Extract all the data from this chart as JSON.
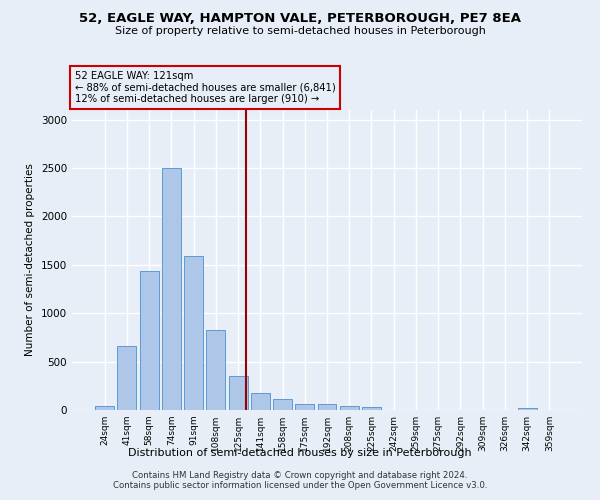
{
  "title": "52, EAGLE WAY, HAMPTON VALE, PETERBOROUGH, PE7 8EA",
  "subtitle": "Size of property relative to semi-detached houses in Peterborough",
  "xlabel": "Distribution of semi-detached houses by size in Peterborough",
  "ylabel": "Number of semi-detached properties",
  "footer_line1": "Contains HM Land Registry data © Crown copyright and database right 2024.",
  "footer_line2": "Contains public sector information licensed under the Open Government Licence v3.0.",
  "categories": [
    "24sqm",
    "41sqm",
    "58sqm",
    "74sqm",
    "91sqm",
    "108sqm",
    "125sqm",
    "141sqm",
    "158sqm",
    "175sqm",
    "192sqm",
    "208sqm",
    "225sqm",
    "242sqm",
    "259sqm",
    "275sqm",
    "292sqm",
    "309sqm",
    "326sqm",
    "342sqm",
    "359sqm"
  ],
  "values": [
    40,
    660,
    1440,
    2500,
    1590,
    830,
    350,
    175,
    115,
    60,
    60,
    45,
    30,
    0,
    0,
    0,
    0,
    0,
    0,
    25,
    0
  ],
  "bar_color": "#aec6e8",
  "bar_edge_color": "#5b9bd5",
  "ylim": [
    0,
    3100
  ],
  "yticks": [
    0,
    500,
    1000,
    1500,
    2000,
    2500,
    3000
  ],
  "property_label": "52 EAGLE WAY: 121sqm",
  "pct_smaller": 88,
  "n_smaller": 6841,
  "pct_larger": 12,
  "n_larger": 910,
  "vline_x": 6.35,
  "annotation_box_color": "#cc0000",
  "background_color": "#e8eef8",
  "grid_color": "#ffffff"
}
